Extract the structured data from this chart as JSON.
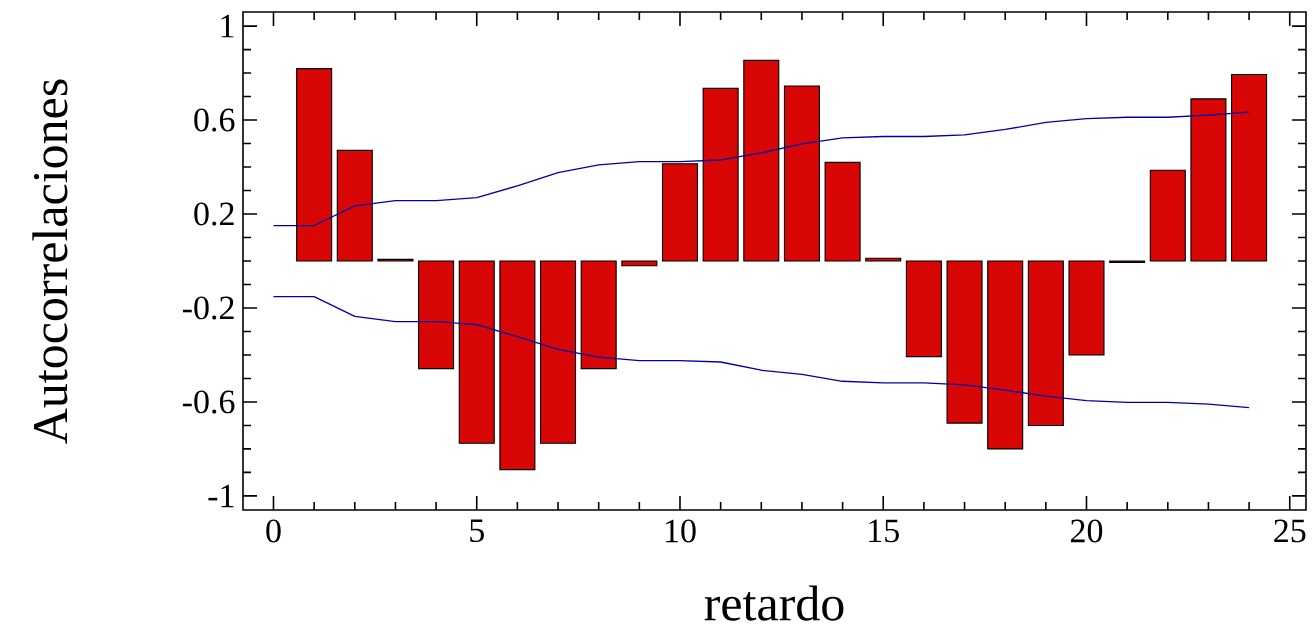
{
  "chart_data": {
    "type": "bar",
    "xlabel": "retardo",
    "ylabel": "Autocorrelaciones",
    "xlim": [
      -0.75,
      25.4
    ],
    "ylim": [
      -1.06,
      1.06
    ],
    "xticks": [
      0,
      5,
      10,
      15,
      20,
      25
    ],
    "yticks": [
      -1,
      -0.6,
      -0.2,
      0.2,
      0.6,
      1
    ],
    "grid": false,
    "series": [
      {
        "color": "#d90606",
        "x": [
          1,
          2,
          3,
          4,
          5,
          6,
          7,
          8,
          9,
          10,
          11,
          12,
          13,
          14,
          15,
          16,
          17,
          18,
          19,
          20,
          21,
          22,
          23,
          24
        ],
        "values": [
          0.819,
          0.471,
          0.007,
          -0.458,
          -0.776,
          -0.888,
          -0.776,
          -0.458,
          -0.02,
          0.414,
          0.735,
          0.854,
          0.745,
          0.42,
          0.012,
          -0.407,
          -0.69,
          -0.8,
          -0.7,
          -0.4,
          -0.006,
          0.386,
          0.69,
          0.794
        ]
      },
      {
        "type": "line",
        "color": "#0000aa",
        "x": [
          0,
          1,
          2,
          3,
          4,
          5,
          6,
          7,
          8,
          9,
          10,
          11,
          12,
          13,
          14,
          15,
          16,
          17,
          18,
          19,
          20,
          21,
          22,
          23,
          24
        ],
        "values": [
          0.151,
          0.151,
          0.235,
          0.257,
          0.257,
          0.27,
          0.32,
          0.376,
          0.409,
          0.423,
          0.423,
          0.43,
          0.46,
          0.499,
          0.524,
          0.53,
          0.53,
          0.537,
          0.56,
          0.59,
          0.606,
          0.612,
          0.612,
          0.621,
          0.634
        ]
      },
      {
        "type": "line",
        "color": "#0000aa",
        "x": [
          0,
          1,
          2,
          3,
          4,
          5,
          6,
          7,
          8,
          9,
          10,
          11,
          12,
          13,
          14,
          15,
          16,
          17,
          18,
          19,
          20,
          21,
          22,
          23,
          24
        ],
        "values": [
          -0.152,
          -0.152,
          -0.236,
          -0.258,
          -0.258,
          -0.271,
          -0.322,
          -0.376,
          -0.409,
          -0.424,
          -0.424,
          -0.43,
          -0.465,
          -0.483,
          -0.512,
          -0.519,
          -0.519,
          -0.527,
          -0.55,
          -0.575,
          -0.594,
          -0.602,
          -0.602,
          -0.609,
          -0.624
        ]
      }
    ]
  }
}
